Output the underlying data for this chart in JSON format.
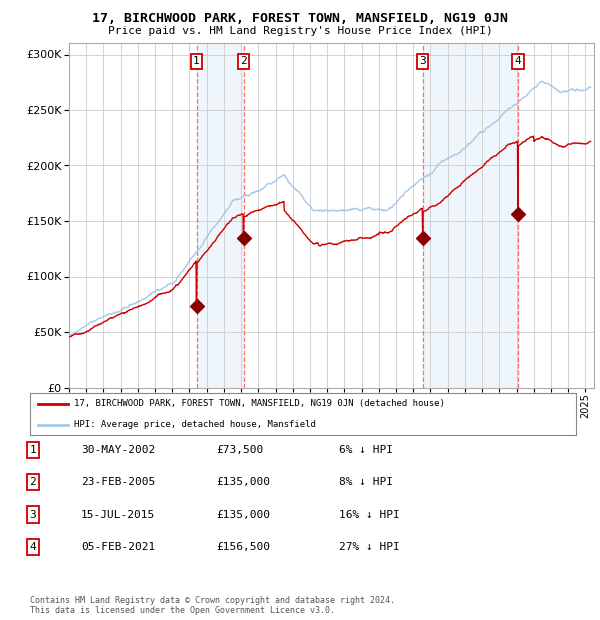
{
  "title": "17, BIRCHWOOD PARK, FOREST TOWN, MANSFIELD, NG19 0JN",
  "subtitle": "Price paid vs. HM Land Registry's House Price Index (HPI)",
  "legend_line1": "17, BIRCHWOOD PARK, FOREST TOWN, MANSFIELD, NG19 0JN (detached house)",
  "legend_line2": "HPI: Average price, detached house, Mansfield",
  "footer": "Contains HM Land Registry data © Crown copyright and database right 2024.\nThis data is licensed under the Open Government Licence v3.0.",
  "hpi_color": "#a8c8e8",
  "price_color": "#cc0000",
  "sale_marker_color": "#880000",
  "vline_color": "#ff5555",
  "shade_color": "#d0e8f8",
  "grid_color": "#cccccc",
  "bg_color": "#ffffff",
  "ylim": [
    0,
    310000
  ],
  "yticks": [
    0,
    50000,
    100000,
    150000,
    200000,
    250000,
    300000
  ],
  "sales": [
    {
      "date_str": "30-MAY-2002",
      "price": 73500,
      "label": "1",
      "hpi_pct": "6% ↓ HPI",
      "x_year": 2002.41
    },
    {
      "date_str": "23-FEB-2005",
      "price": 135000,
      "label": "2",
      "hpi_pct": "8% ↓ HPI",
      "x_year": 2005.14
    },
    {
      "date_str": "15-JUL-2015",
      "price": 135000,
      "label": "3",
      "hpi_pct": "16% ↓ HPI",
      "x_year": 2015.54
    },
    {
      "date_str": "05-FEB-2021",
      "price": 156500,
      "label": "4",
      "hpi_pct": "27% ↓ HPI",
      "x_year": 2021.09
    }
  ],
  "table_rows": [
    [
      "1",
      "30-MAY-2002",
      "£73,500",
      "6% ↓ HPI"
    ],
    [
      "2",
      "23-FEB-2005",
      "£135,000",
      "8% ↓ HPI"
    ],
    [
      "3",
      "15-JUL-2015",
      "£135,000",
      "16% ↓ HPI"
    ],
    [
      "4",
      "05-FEB-2021",
      "£156,500",
      "27% ↓ HPI"
    ]
  ],
  "xlim_start": 1995.0,
  "xlim_end": 2025.5,
  "xticks": [
    1995,
    1996,
    1997,
    1998,
    1999,
    2000,
    2001,
    2002,
    2003,
    2004,
    2005,
    2006,
    2007,
    2008,
    2009,
    2010,
    2011,
    2012,
    2013,
    2014,
    2015,
    2016,
    2017,
    2018,
    2019,
    2020,
    2021,
    2022,
    2023,
    2024,
    2025
  ]
}
